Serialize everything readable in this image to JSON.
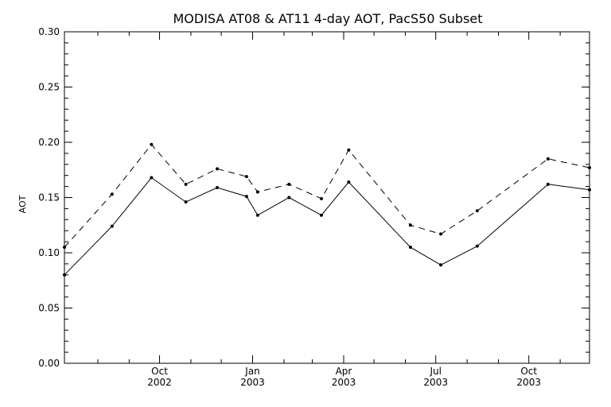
{
  "chart_data": {
    "type": "line",
    "title": "MODISA AT08 & AT11 4-day AOT, PacS50 Subset",
    "xlabel": "",
    "ylabel": "AOT",
    "ylim": [
      0,
      0.3
    ],
    "xlim": [
      "2002-06-29",
      "2003-11-30"
    ],
    "yticks": [
      "0.00",
      "0.05",
      "0.10",
      "0.15",
      "0.20",
      "0.25",
      "0.30"
    ],
    "xticks": [
      {
        "date": "2002-10-01",
        "month": "Oct",
        "year": "2002"
      },
      {
        "date": "2003-01-01",
        "month": "Jan",
        "year": "2003"
      },
      {
        "date": "2003-04-01",
        "month": "Apr",
        "year": "2003"
      },
      {
        "date": "2003-07-01",
        "month": "Jul",
        "year": "2003"
      },
      {
        "date": "2003-10-01",
        "month": "Oct",
        "year": "2003"
      }
    ],
    "grid": false,
    "legend": "none",
    "series": [
      {
        "line_style": "dashed",
        "points": [
          {
            "x": "2002-06-29",
            "y": 0.105
          },
          {
            "x": "2002-08-15",
            "y": 0.153
          },
          {
            "x": "2002-09-23",
            "y": 0.198
          },
          {
            "x": "2002-10-27",
            "y": 0.162
          },
          {
            "x": "2002-11-27",
            "y": 0.176
          },
          {
            "x": "2002-12-26",
            "y": 0.169
          },
          {
            "x": "2003-01-06",
            "y": 0.155
          },
          {
            "x": "2003-02-06",
            "y": 0.162
          },
          {
            "x": "2003-03-10",
            "y": 0.149
          },
          {
            "x": "2003-04-06",
            "y": 0.193
          },
          {
            "x": "2003-06-06",
            "y": 0.125
          },
          {
            "x": "2003-07-06",
            "y": 0.117
          },
          {
            "x": "2003-08-11",
            "y": 0.138
          },
          {
            "x": "2003-10-20",
            "y": 0.185
          },
          {
            "x": "2003-11-30",
            "y": 0.177
          }
        ]
      },
      {
        "line_style": "solid",
        "points": [
          {
            "x": "2002-06-29",
            "y": 0.08
          },
          {
            "x": "2002-08-15",
            "y": 0.124
          },
          {
            "x": "2002-09-23",
            "y": 0.168
          },
          {
            "x": "2002-10-27",
            "y": 0.146
          },
          {
            "x": "2002-11-27",
            "y": 0.159
          },
          {
            "x": "2002-12-26",
            "y": 0.151
          },
          {
            "x": "2003-01-06",
            "y": 0.134
          },
          {
            "x": "2003-02-06",
            "y": 0.15
          },
          {
            "x": "2003-03-10",
            "y": 0.134
          },
          {
            "x": "2003-04-06",
            "y": 0.164
          },
          {
            "x": "2003-06-06",
            "y": 0.105
          },
          {
            "x": "2003-07-06",
            "y": 0.089
          },
          {
            "x": "2003-08-11",
            "y": 0.106
          },
          {
            "x": "2003-10-20",
            "y": 0.162
          },
          {
            "x": "2003-11-30",
            "y": 0.157
          }
        ]
      }
    ]
  }
}
